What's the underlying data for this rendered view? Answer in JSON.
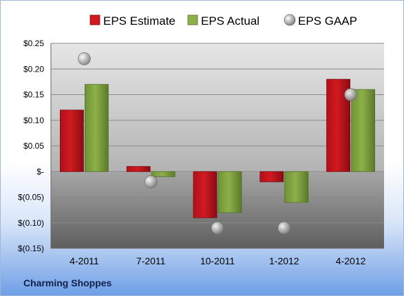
{
  "company_name": "Charming Shoppes",
  "colors": {
    "estimate": "#d11a22",
    "actual": "#8db04a",
    "gaap": "#a8a8a8"
  },
  "chart_data": {
    "type": "bar",
    "categories": [
      "4-2011",
      "7-2011",
      "10-2011",
      "1-2012",
      "4-2012"
    ],
    "series": [
      {
        "name": "EPS Estimate",
        "values": [
          0.12,
          0.01,
          -0.09,
          -0.02,
          0.18
        ]
      },
      {
        "name": "EPS Actual",
        "values": [
          0.17,
          -0.01,
          -0.08,
          -0.06,
          0.16
        ]
      },
      {
        "name": "EPS GAAP",
        "values": [
          0.22,
          -0.02,
          -0.11,
          -0.11,
          0.15
        ],
        "marker": "circle"
      }
    ],
    "yticks": [
      0.25,
      0.2,
      0.15,
      0.1,
      0.05,
      0,
      -0.05,
      -0.1,
      -0.15
    ],
    "ytick_labels": [
      "$0.25",
      "$0.20",
      "$0.15",
      "$0.10",
      "$0.05",
      "$-",
      "$(0.05)",
      "$(0.10)",
      "$(0.15)"
    ],
    "ylim": [
      -0.15,
      0.25
    ],
    "legend": "top",
    "grid": true
  }
}
